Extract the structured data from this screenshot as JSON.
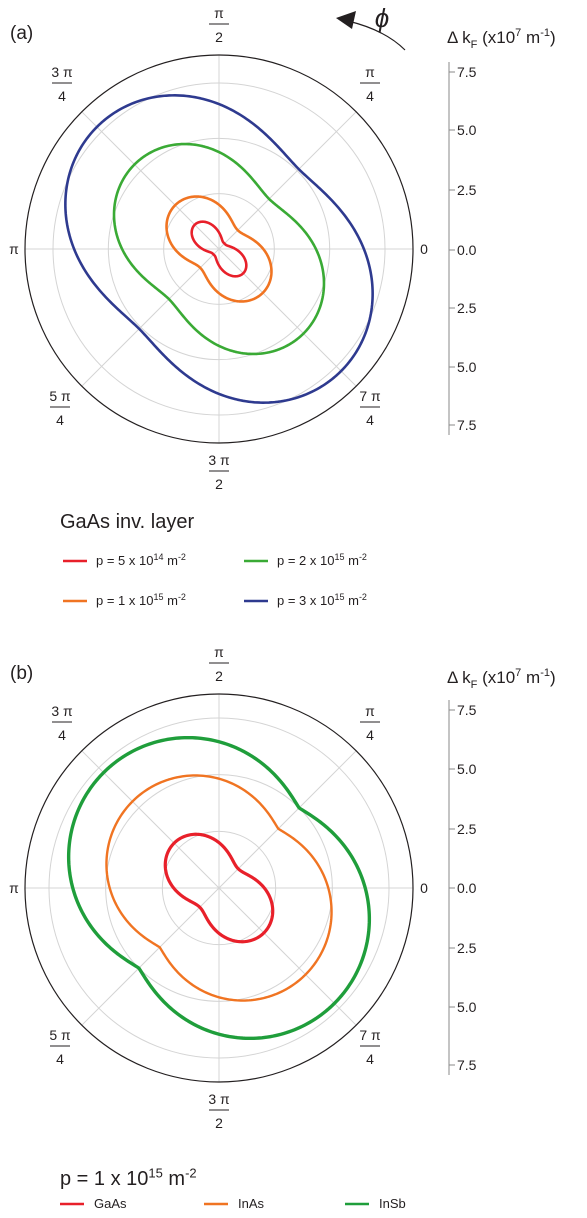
{
  "chart_data": [
    {
      "panel_label": "(a)",
      "type": "polar-line",
      "radial_axis_label": "Δk_F (x10^7 m^-1)",
      "radial_axis_label_parts": {
        "base": "Δ k",
        "sub": "F",
        "pre": " (x10",
        "sup": "7",
        "mid": " m",
        "sup2": "-1",
        "post": ")"
      },
      "radial_tick_labels": [
        "7.5",
        "5.0",
        "2.5",
        "0.0",
        "2.5",
        "5.0",
        "7.5"
      ],
      "radial_range": [
        0,
        7.5
      ],
      "grid": true,
      "angle_symbol": "ϕ",
      "angle_labels": [
        {
          "num": "π",
          "den": "2"
        },
        {
          "num": "π",
          "den": "4"
        },
        {
          "num": "0",
          "den": ""
        },
        {
          "num": "7 π",
          "den": "4"
        },
        {
          "num": "3 π",
          "den": "2"
        },
        {
          "num": "5 π",
          "den": "4"
        },
        {
          "num": "π",
          "den": ""
        },
        {
          "num": "3 π",
          "den": "4"
        }
      ],
      "legend_title": "GaAs inv. layer",
      "legend_placement": "below",
      "series": [
        {
          "name": "p = 5 x 10^14 m^-2",
          "legend": {
            "pre": "p = 5 x 10",
            "sup": "14",
            "mid": " m",
            "sup2": "-2"
          },
          "color": "#e8202a",
          "width": 2.6,
          "r_min": 0.35,
          "r_max": 1.55,
          "sharp": 1.6
        },
        {
          "name": "p = 1 x 10^15 m^-2",
          "legend": {
            "pre": "p = 1 x 10",
            "sup": "15",
            "mid": " m",
            "sup2": "-2"
          },
          "color": "#f07422",
          "width": 2.6,
          "r_min": 1.2,
          "r_max": 2.8,
          "sharp": 1.0
        },
        {
          "name": "p = 2 x 10^15 m^-2",
          "legend": {
            "pre": "p = 2 x 10",
            "sup": "15",
            "mid": " m",
            "sup2": "-2"
          },
          "color": "#3aaa35",
          "width": 2.6,
          "r_min": 3.2,
          "r_max": 5.4,
          "sharp": 0.9
        },
        {
          "name": "p = 3 x 10^15 m^-2",
          "legend": {
            "pre": "p = 3 x 10",
            "sup": "15",
            "mid": " m",
            "sup2": "-2"
          },
          "color": "#2e3a8f",
          "width": 2.6,
          "r_min": 5.1,
          "r_max": 7.8,
          "sharp": 0.9
        }
      ]
    },
    {
      "panel_label": "(b)",
      "type": "polar-line",
      "radial_axis_label": "Δk_F (x10^7 m^-1)",
      "radial_axis_label_parts": {
        "base": "Δ k",
        "sub": "F",
        "pre": " (x10",
        "sup": "7",
        "mid": " m",
        "sup2": "-1",
        "post": ")"
      },
      "radial_tick_labels": [
        "7.5",
        "5.0",
        "2.5",
        "0.0",
        "2.5",
        "5.0",
        "7.5"
      ],
      "radial_range": [
        0,
        7.5
      ],
      "grid": true,
      "angle_labels": [
        {
          "num": "π",
          "den": "2"
        },
        {
          "num": "π",
          "den": "4"
        },
        {
          "num": "0",
          "den": ""
        },
        {
          "num": "7 π",
          "den": "4"
        },
        {
          "num": "3 π",
          "den": "2"
        },
        {
          "num": "5 π",
          "den": "4"
        },
        {
          "num": "π",
          "den": ""
        },
        {
          "num": "3 π",
          "den": "4"
        }
      ],
      "legend_title": "p = 1 x 10^15 m^-2",
      "legend_title_parts": {
        "pre": "p = 1 x 10",
        "sup": "15",
        "mid": " m",
        "sup2": "-2"
      },
      "legend_placement": "below",
      "series": [
        {
          "name": "GaAs",
          "color": "#e8202a",
          "width": 3.2,
          "r_min": 1.2,
          "r_max": 2.8,
          "sharp": 1.0
        },
        {
          "name": "InAs",
          "color": "#f07422",
          "width": 2.4,
          "r_min": 3.7,
          "r_max": 5.4,
          "sharp": 0.6
        },
        {
          "name": "InSb",
          "color": "#1f9e3b",
          "width": 3.4,
          "r_min": 5.0,
          "r_max": 7.2,
          "sharp": 0.6
        }
      ]
    }
  ]
}
